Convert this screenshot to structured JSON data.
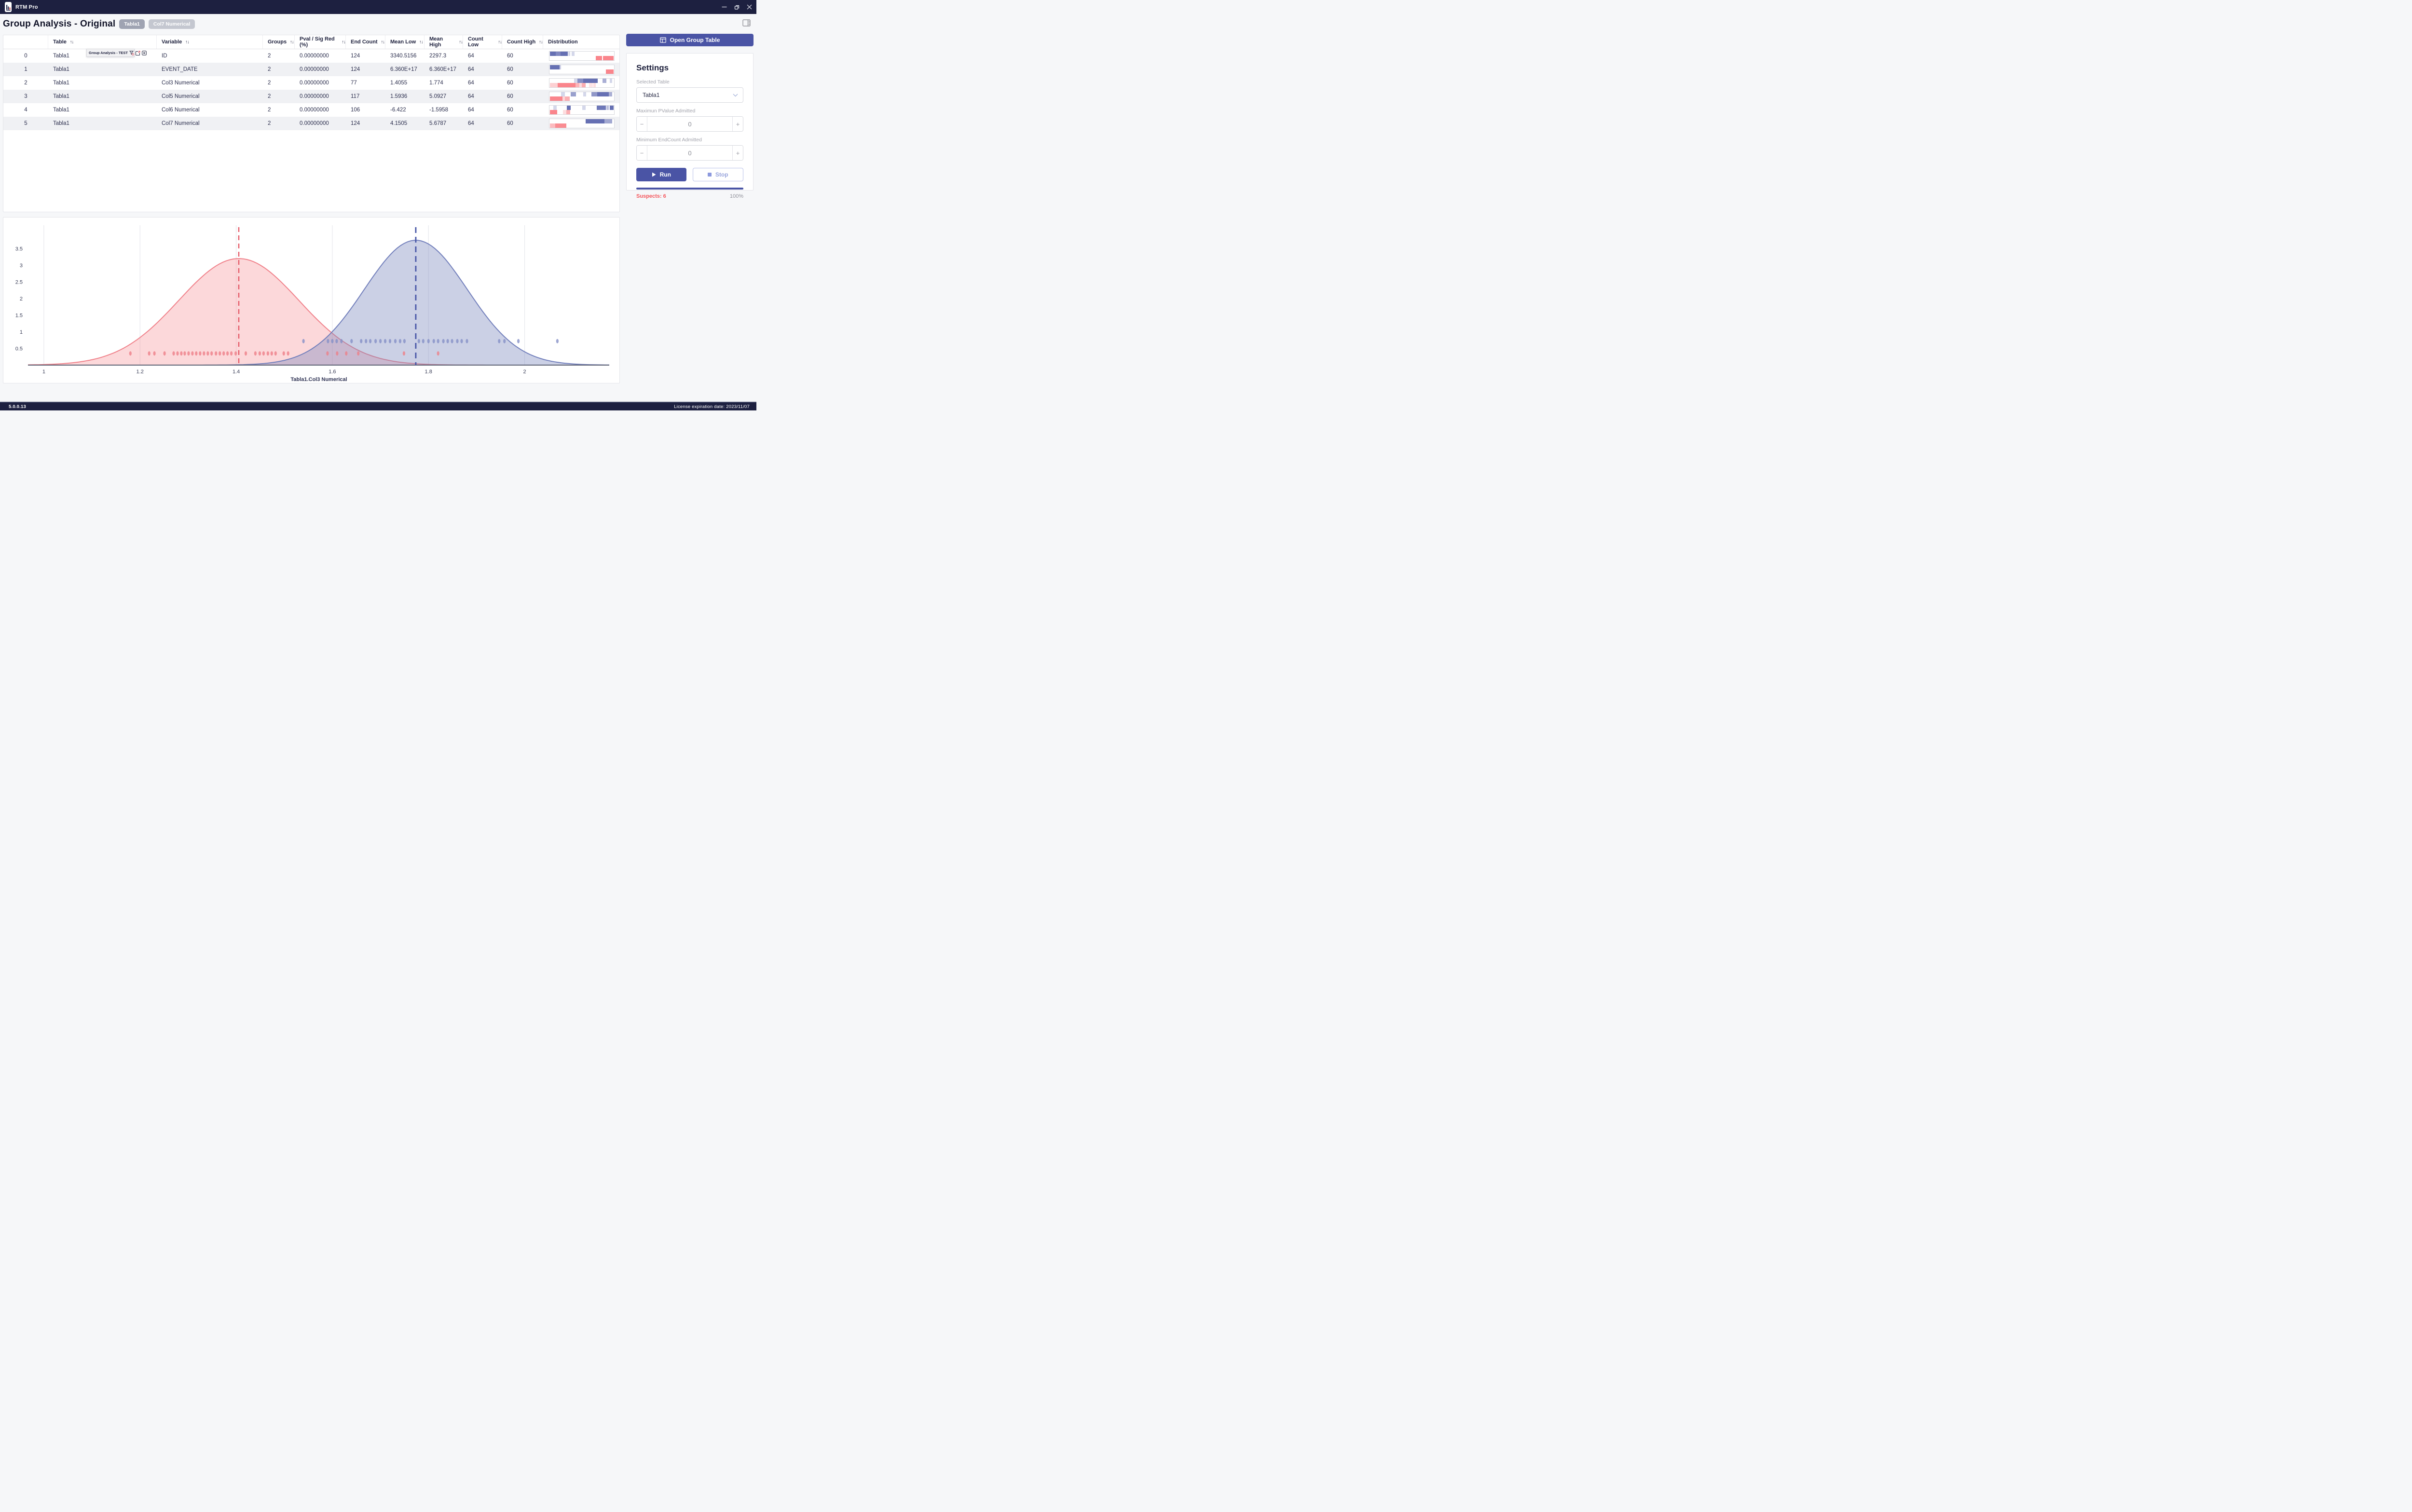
{
  "window": {
    "app_name": "RTM Pro",
    "version": "5.0.0.13",
    "license": "License expiration date: 2023/11/07"
  },
  "header": {
    "title": "Group Analysis - Original",
    "tags": [
      "Tabla1",
      "Col7 Numerical"
    ]
  },
  "tooltip": {
    "title": "Group Analysis - TEST"
  },
  "table": {
    "sort_icon": "↑↓",
    "columns": [
      {
        "key": "index",
        "label": "",
        "sortable": false
      },
      {
        "key": "table",
        "label": "Table",
        "sortable": true
      },
      {
        "key": "variable",
        "label": "Variable",
        "sortable": true
      },
      {
        "key": "groups",
        "label": "Groups",
        "sortable": true
      },
      {
        "key": "pval",
        "label": "Pval / Sig Red (%)",
        "sortable": true
      },
      {
        "key": "end_count",
        "label": "End Count",
        "sortable": true
      },
      {
        "key": "mean_low",
        "label": "Mean Low",
        "sortable": true
      },
      {
        "key": "mean_high",
        "label": "Mean High",
        "sortable": true
      },
      {
        "key": "count_low",
        "label": "Count Low",
        "sortable": true
      },
      {
        "key": "count_high",
        "label": "Count High",
        "sortable": true
      },
      {
        "key": "distribution",
        "label": "Distribution",
        "sortable": false
      }
    ],
    "rows": [
      {
        "index": "0",
        "table": "Tabla1",
        "variable": "ID",
        "groups": "2",
        "pval": "0.00000000",
        "end_count": "124",
        "mean_low": "3340.5156",
        "mean_high": "2297.3",
        "count_low": "64",
        "count_high": "60",
        "dist": {
          "blue": [
            [
              1,
              10,
              0.9
            ],
            [
              10,
              17,
              0.75
            ],
            [
              17,
              28,
              0.9
            ],
            [
              29,
              32,
              0.25
            ],
            [
              34,
              39,
              0.25
            ]
          ],
          "red": [
            [
              72,
              81,
              0.9
            ],
            [
              83,
              99,
              0.9
            ]
          ]
        }
      },
      {
        "index": "1",
        "table": "Tabla1",
        "variable": "EVENT_DATE",
        "groups": "2",
        "pval": "0.00000000",
        "end_count": "124",
        "mean_low": "6.360E+17",
        "mean_high": "6.360E+17",
        "count_low": "64",
        "count_high": "60",
        "dist": {
          "blue": [
            [
              1,
              16,
              0.9
            ],
            [
              16,
              18,
              0.3
            ]
          ],
          "red": [
            [
              87,
              99,
              0.9
            ]
          ]
        }
      },
      {
        "index": "2",
        "table": "Tabla1",
        "variable": "Col3 Numerical",
        "groups": "2",
        "pval": "0.00000000",
        "end_count": "77",
        "mean_low": "1.4055",
        "mean_high": "1.774",
        "count_low": "64",
        "count_high": "60",
        "dist": {
          "blue": [
            [
              38,
              43,
              0.25
            ],
            [
              43,
              52,
              0.7
            ],
            [
              52,
              75,
              0.9
            ],
            [
              82,
              88,
              0.5
            ],
            [
              93,
              97,
              0.25
            ]
          ],
          "red": [
            [
              1,
              13,
              0.35
            ],
            [
              13,
              40,
              0.9
            ],
            [
              40,
              46,
              0.55
            ],
            [
              46,
              50,
              0.25
            ],
            [
              50,
              56,
              0.6
            ],
            [
              61,
              67,
              0.2
            ],
            [
              68,
              72,
              0.25
            ]
          ]
        }
      },
      {
        "index": "3",
        "table": "Tabla1",
        "variable": "Col5 Numerical",
        "groups": "2",
        "pval": "0.00000000",
        "end_count": "117",
        "mean_low": "1.5936",
        "mean_high": "5.0927",
        "count_low": "64",
        "count_high": "60",
        "dist": {
          "blue": [
            [
              18,
              24,
              0.25
            ],
            [
              33,
              41,
              0.6
            ],
            [
              52,
              57,
              0.25
            ],
            [
              65,
              74,
              0.65
            ],
            [
              74,
              92,
              0.9
            ],
            [
              92,
              97,
              0.5
            ]
          ],
          "red": [
            [
              1,
              20,
              0.9
            ],
            [
              20,
              24,
              0.3
            ],
            [
              24,
              31,
              0.6
            ]
          ]
        }
      },
      {
        "index": "4",
        "table": "Tabla1",
        "variable": "Col6 Numerical",
        "groups": "2",
        "pval": "0.00000000",
        "end_count": "106",
        "mean_low": "-6.422",
        "mean_high": "-1.5958",
        "count_low": "64",
        "count_high": "60",
        "dist": {
          "blue": [
            [
              6,
              11,
              0.25
            ],
            [
              27,
              33,
              0.9
            ],
            [
              51,
              56,
              0.25
            ],
            [
              73,
              87,
              0.85
            ],
            [
              88,
              92,
              0.4
            ],
            [
              93,
              99,
              0.9
            ]
          ],
          "red": [
            [
              1,
              12,
              0.9
            ],
            [
              21,
              26,
              0.25
            ],
            [
              26,
              32,
              0.6
            ]
          ]
        }
      },
      {
        "index": "5",
        "table": "Tabla1",
        "variable": "Col7 Numerical",
        "groups": "2",
        "pval": "0.00000000",
        "end_count": "124",
        "mean_low": "4.1505",
        "mean_high": "5.6787",
        "count_low": "64",
        "count_high": "60",
        "dist": {
          "blue": [
            [
              56,
              85,
              0.9
            ],
            [
              85,
              97,
              0.55
            ]
          ],
          "red": [
            [
              1,
              9,
              0.5
            ],
            [
              9,
              26,
              0.85
            ]
          ]
        }
      }
    ]
  },
  "panel": {
    "open_group_table": "Open Group Table",
    "settings_title": "Settings",
    "selected_table_label": "Selected Table",
    "selected_table_value": "Tabla1",
    "max_pvalue_label": "Maximun PValue Admitted",
    "max_pvalue_value": "0",
    "min_endcount_label": "Minimum EndCount Admitted",
    "min_endcount_value": "0",
    "minus_glyph": "−",
    "plus_glyph": "+",
    "run_label": "Run",
    "stop_label": "Stop",
    "suspects_label": "Suspects: 6",
    "progress_label": "100%",
    "accent_color": "#4a54a5"
  },
  "chart_data": {
    "type": "area",
    "title": "",
    "xlabel": "Tabla1.Col3 Numerical",
    "ylabel": "",
    "x_domain": [
      0.967,
      2.176
    ],
    "y_domain": [
      0,
      4.2
    ],
    "x_ticks": [
      1,
      1.2,
      1.4,
      1.6,
      1.8,
      2
    ],
    "y_ticks": [
      0.5,
      1,
      1.5,
      2,
      2.5,
      3,
      3.5
    ],
    "grid": "vertical-only",
    "legend": "none",
    "series": [
      {
        "name": "Group Low (Mean Low)",
        "kind": "gaussian",
        "mean": 1.4055,
        "sigma": 0.125,
        "peak": 3.2,
        "stroke": "#f0828b",
        "fill": "rgba(245,125,133,0.3)",
        "mean_line_x": 1.4055,
        "mean_line_color": "#e45866",
        "points_y": 0.35,
        "point_color": "rgba(238,128,136,0.8)",
        "points": [
          1.18,
          1.219,
          1.23,
          1.251,
          1.27,
          1.278,
          1.286,
          1.293,
          1.301,
          1.309,
          1.317,
          1.325,
          1.333,
          1.341,
          1.349,
          1.358,
          1.366,
          1.374,
          1.382,
          1.39,
          1.399,
          1.42,
          1.44,
          1.449,
          1.457,
          1.466,
          1.474,
          1.482,
          1.499,
          1.508,
          1.59,
          1.61,
          1.629,
          1.654,
          1.749,
          1.82
        ]
      },
      {
        "name": "Group High (Mean High)",
        "kind": "gaussian",
        "mean": 1.7736,
        "sigma": 0.107,
        "peak": 3.75,
        "stroke": "#7380bc",
        "fill": "rgba(125,137,191,0.4)",
        "mean_line_x": 1.7736,
        "mean_line_color": "#4554a6",
        "points_y": 0.72,
        "point_color": "rgba(132,144,199,0.8)",
        "points": [
          1.54,
          1.591,
          1.6,
          1.609,
          1.619,
          1.64,
          1.66,
          1.67,
          1.679,
          1.69,
          1.7,
          1.71,
          1.72,
          1.731,
          1.741,
          1.75,
          1.78,
          1.789,
          1.8,
          1.811,
          1.82,
          1.831,
          1.84,
          1.849,
          1.86,
          1.869,
          1.88,
          1.947,
          1.958,
          1.987,
          2.068
        ]
      }
    ]
  }
}
